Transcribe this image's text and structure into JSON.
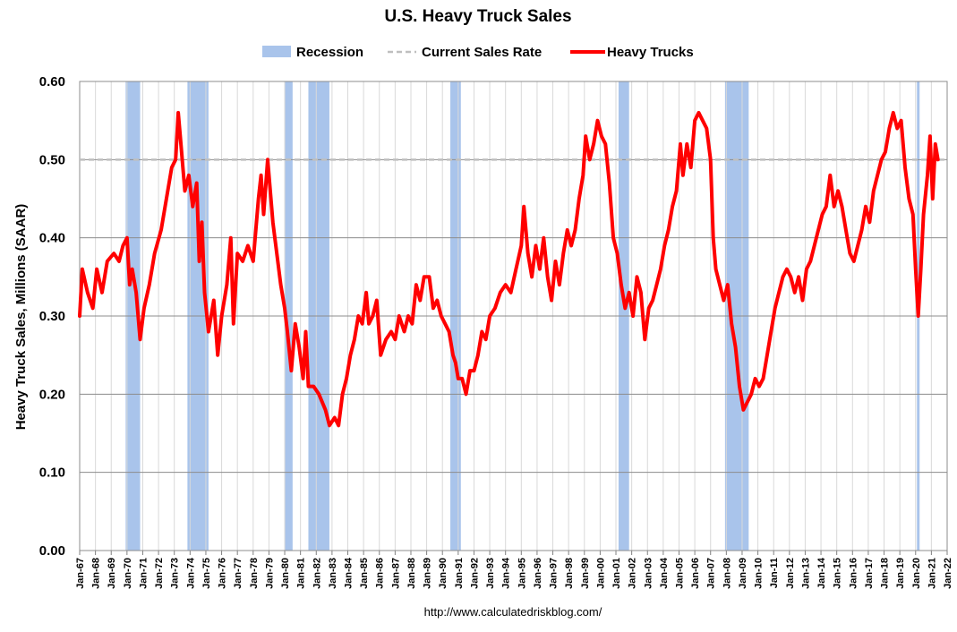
{
  "chart_data": {
    "type": "line",
    "title": "U.S. Heavy Truck Sales",
    "ylabel": "Heavy Truck Sales, Millions (SAAR)",
    "xlabel": "",
    "source": "http://www.calculatedriskblog.com/",
    "ylim": [
      0,
      0.6
    ],
    "yticks": [
      "0.00",
      "0.10",
      "0.20",
      "0.30",
      "0.40",
      "0.50",
      "0.60"
    ],
    "x_range": [
      "1967-01",
      "2022-01"
    ],
    "x_tick_labels": [
      "Jan-67",
      "Jan-68",
      "Jan-69",
      "Jan-70",
      "Jan-71",
      "Jan-72",
      "Jan-73",
      "Jan-74",
      "Jan-75",
      "Jan-76",
      "Jan-77",
      "Jan-78",
      "Jan-79",
      "Jan-80",
      "Jan-81",
      "Jan-82",
      "Jan-83",
      "Jan-84",
      "Jan-85",
      "Jan-86",
      "Jan-87",
      "Jan-88",
      "Jan-89",
      "Jan-90",
      "Jan-91",
      "Jan-92",
      "Jan-93",
      "Jan-94",
      "Jan-95",
      "Jan-96",
      "Jan-97",
      "Jan-98",
      "Jan-99",
      "Jan-00",
      "Jan-01",
      "Jan-02",
      "Jan-03",
      "Jan-04",
      "Jan-05",
      "Jan-06",
      "Jan-07",
      "Jan-08",
      "Jan-09",
      "Jan-10",
      "Jan-11",
      "Jan-12",
      "Jan-13",
      "Jan-14",
      "Jan-15",
      "Jan-16",
      "Jan-17",
      "Jan-18",
      "Jan-19",
      "Jan-20",
      "Jan-21",
      "Jan-22"
    ],
    "grid": true,
    "legend": {
      "placement": "top",
      "entries": [
        {
          "label": "Recession",
          "style": "band",
          "color": "#a9c4eb"
        },
        {
          "label": "Current Sales Rate",
          "style": "dashed",
          "color": "#bfbfbf"
        },
        {
          "label": "Heavy Trucks",
          "style": "line",
          "color": "#ff0000"
        }
      ]
    },
    "recessions": [
      [
        "1969-12",
        "1970-11"
      ],
      [
        "1973-11",
        "1975-03"
      ],
      [
        "1980-01",
        "1980-07"
      ],
      [
        "1981-07",
        "1982-11"
      ],
      [
        "1990-07",
        "1991-03"
      ],
      [
        "2001-03",
        "2001-11"
      ],
      [
        "2007-12",
        "2009-06"
      ],
      [
        "2020-02",
        "2020-04"
      ]
    ],
    "current_rate": 0.5,
    "series": [
      {
        "name": "Heavy Trucks",
        "color": "#ff0000",
        "points": [
          [
            "1967-01",
            0.3
          ],
          [
            "1967-03",
            0.36
          ],
          [
            "1967-07",
            0.33
          ],
          [
            "1967-11",
            0.31
          ],
          [
            "1968-02",
            0.36
          ],
          [
            "1968-06",
            0.33
          ],
          [
            "1968-10",
            0.37
          ],
          [
            "1969-03",
            0.38
          ],
          [
            "1969-07",
            0.37
          ],
          [
            "1969-10",
            0.39
          ],
          [
            "1970-01",
            0.4
          ],
          [
            "1970-03",
            0.34
          ],
          [
            "1970-05",
            0.36
          ],
          [
            "1970-08",
            0.33
          ],
          [
            "1970-11",
            0.27
          ],
          [
            "1971-02",
            0.31
          ],
          [
            "1971-06",
            0.34
          ],
          [
            "1971-10",
            0.38
          ],
          [
            "1972-03",
            0.41
          ],
          [
            "1972-07",
            0.45
          ],
          [
            "1972-11",
            0.49
          ],
          [
            "1973-02",
            0.5
          ],
          [
            "1973-04",
            0.56
          ],
          [
            "1973-06",
            0.52
          ],
          [
            "1973-09",
            0.46
          ],
          [
            "1973-12",
            0.48
          ],
          [
            "1974-03",
            0.44
          ],
          [
            "1974-06",
            0.47
          ],
          [
            "1974-08",
            0.37
          ],
          [
            "1974-10",
            0.42
          ],
          [
            "1974-12",
            0.33
          ],
          [
            "1975-03",
            0.28
          ],
          [
            "1975-07",
            0.32
          ],
          [
            "1975-10",
            0.25
          ],
          [
            "1976-01",
            0.3
          ],
          [
            "1976-05",
            0.34
          ],
          [
            "1976-08",
            0.4
          ],
          [
            "1976-10",
            0.29
          ],
          [
            "1977-01",
            0.38
          ],
          [
            "1977-05",
            0.37
          ],
          [
            "1977-09",
            0.39
          ],
          [
            "1978-01",
            0.37
          ],
          [
            "1978-05",
            0.45
          ],
          [
            "1978-07",
            0.48
          ],
          [
            "1978-09",
            0.43
          ],
          [
            "1978-12",
            0.5
          ],
          [
            "1979-04",
            0.42
          ],
          [
            "1979-07",
            0.38
          ],
          [
            "1979-10",
            0.34
          ],
          [
            "1980-01",
            0.31
          ],
          [
            "1980-03",
            0.28
          ],
          [
            "1980-06",
            0.23
          ],
          [
            "1980-09",
            0.29
          ],
          [
            "1980-12",
            0.26
          ],
          [
            "1981-03",
            0.22
          ],
          [
            "1981-05",
            0.28
          ],
          [
            "1981-07",
            0.21
          ],
          [
            "1981-11",
            0.21
          ],
          [
            "1982-03",
            0.2
          ],
          [
            "1982-08",
            0.18
          ],
          [
            "1982-11",
            0.16
          ],
          [
            "1983-03",
            0.17
          ],
          [
            "1983-06",
            0.16
          ],
          [
            "1983-09",
            0.2
          ],
          [
            "1983-12",
            0.22
          ],
          [
            "1984-03",
            0.25
          ],
          [
            "1984-06",
            0.27
          ],
          [
            "1984-09",
            0.3
          ],
          [
            "1984-12",
            0.29
          ],
          [
            "1985-03",
            0.33
          ],
          [
            "1985-05",
            0.29
          ],
          [
            "1985-08",
            0.3
          ],
          [
            "1985-11",
            0.32
          ],
          [
            "1986-02",
            0.25
          ],
          [
            "1986-06",
            0.27
          ],
          [
            "1986-10",
            0.28
          ],
          [
            "1987-01",
            0.27
          ],
          [
            "1987-04",
            0.3
          ],
          [
            "1987-08",
            0.28
          ],
          [
            "1987-11",
            0.3
          ],
          [
            "1988-02",
            0.29
          ],
          [
            "1988-05",
            0.34
          ],
          [
            "1988-08",
            0.32
          ],
          [
            "1988-11",
            0.35
          ],
          [
            "1989-03",
            0.35
          ],
          [
            "1989-06",
            0.31
          ],
          [
            "1989-09",
            0.32
          ],
          [
            "1989-12",
            0.3
          ],
          [
            "1990-03",
            0.29
          ],
          [
            "1990-06",
            0.28
          ],
          [
            "1990-09",
            0.25
          ],
          [
            "1990-11",
            0.24
          ],
          [
            "1991-01",
            0.22
          ],
          [
            "1991-04",
            0.22
          ],
          [
            "1991-07",
            0.2
          ],
          [
            "1991-10",
            0.23
          ],
          [
            "1992-01",
            0.23
          ],
          [
            "1992-04",
            0.25
          ],
          [
            "1992-07",
            0.28
          ],
          [
            "1992-10",
            0.27
          ],
          [
            "1993-01",
            0.3
          ],
          [
            "1993-05",
            0.31
          ],
          [
            "1993-09",
            0.33
          ],
          [
            "1994-01",
            0.34
          ],
          [
            "1994-05",
            0.33
          ],
          [
            "1994-09",
            0.36
          ],
          [
            "1995-01",
            0.39
          ],
          [
            "1995-03",
            0.44
          ],
          [
            "1995-06",
            0.38
          ],
          [
            "1995-09",
            0.35
          ],
          [
            "1995-12",
            0.39
          ],
          [
            "1996-03",
            0.36
          ],
          [
            "1996-06",
            0.4
          ],
          [
            "1996-09",
            0.35
          ],
          [
            "1996-12",
            0.32
          ],
          [
            "1997-03",
            0.37
          ],
          [
            "1997-06",
            0.34
          ],
          [
            "1997-09",
            0.38
          ],
          [
            "1997-12",
            0.41
          ],
          [
            "1998-03",
            0.39
          ],
          [
            "1998-06",
            0.41
          ],
          [
            "1998-09",
            0.45
          ],
          [
            "1998-12",
            0.48
          ],
          [
            "1999-02",
            0.53
          ],
          [
            "1999-05",
            0.5
          ],
          [
            "1999-08",
            0.52
          ],
          [
            "1999-11",
            0.55
          ],
          [
            "2000-02",
            0.53
          ],
          [
            "2000-05",
            0.52
          ],
          [
            "2000-08",
            0.47
          ],
          [
            "2000-11",
            0.4
          ],
          [
            "2001-02",
            0.38
          ],
          [
            "2001-05",
            0.34
          ],
          [
            "2001-08",
            0.31
          ],
          [
            "2001-11",
            0.33
          ],
          [
            "2002-02",
            0.3
          ],
          [
            "2002-05",
            0.35
          ],
          [
            "2002-08",
            0.33
          ],
          [
            "2002-11",
            0.27
          ],
          [
            "2003-02",
            0.31
          ],
          [
            "2003-05",
            0.32
          ],
          [
            "2003-08",
            0.34
          ],
          [
            "2003-11",
            0.36
          ],
          [
            "2004-02",
            0.39
          ],
          [
            "2004-05",
            0.41
          ],
          [
            "2004-08",
            0.44
          ],
          [
            "2004-11",
            0.46
          ],
          [
            "2005-02",
            0.52
          ],
          [
            "2005-04",
            0.48
          ],
          [
            "2005-07",
            0.52
          ],
          [
            "2005-10",
            0.49
          ],
          [
            "2006-01",
            0.55
          ],
          [
            "2006-04",
            0.56
          ],
          [
            "2006-07",
            0.55
          ],
          [
            "2006-10",
            0.54
          ],
          [
            "2007-01",
            0.5
          ],
          [
            "2007-03",
            0.4
          ],
          [
            "2007-05",
            0.36
          ],
          [
            "2007-08",
            0.34
          ],
          [
            "2007-11",
            0.32
          ],
          [
            "2008-02",
            0.34
          ],
          [
            "2008-05",
            0.29
          ],
          [
            "2008-08",
            0.26
          ],
          [
            "2008-11",
            0.21
          ],
          [
            "2009-02",
            0.18
          ],
          [
            "2009-05",
            0.19
          ],
          [
            "2009-08",
            0.2
          ],
          [
            "2009-11",
            0.22
          ],
          [
            "2010-02",
            0.21
          ],
          [
            "2010-05",
            0.22
          ],
          [
            "2010-08",
            0.25
          ],
          [
            "2010-11",
            0.28
          ],
          [
            "2011-02",
            0.31
          ],
          [
            "2011-05",
            0.33
          ],
          [
            "2011-08",
            0.35
          ],
          [
            "2011-11",
            0.36
          ],
          [
            "2012-02",
            0.35
          ],
          [
            "2012-05",
            0.33
          ],
          [
            "2012-08",
            0.35
          ],
          [
            "2012-11",
            0.32
          ],
          [
            "2013-02",
            0.36
          ],
          [
            "2013-05",
            0.37
          ],
          [
            "2013-08",
            0.39
          ],
          [
            "2013-11",
            0.41
          ],
          [
            "2014-02",
            0.43
          ],
          [
            "2014-05",
            0.44
          ],
          [
            "2014-08",
            0.48
          ],
          [
            "2014-11",
            0.44
          ],
          [
            "2015-02",
            0.46
          ],
          [
            "2015-05",
            0.44
          ],
          [
            "2015-08",
            0.41
          ],
          [
            "2015-11",
            0.38
          ],
          [
            "2016-02",
            0.37
          ],
          [
            "2016-05",
            0.39
          ],
          [
            "2016-08",
            0.41
          ],
          [
            "2016-11",
            0.44
          ],
          [
            "2017-02",
            0.42
          ],
          [
            "2017-05",
            0.46
          ],
          [
            "2017-08",
            0.48
          ],
          [
            "2017-11",
            0.5
          ],
          [
            "2018-02",
            0.51
          ],
          [
            "2018-05",
            0.54
          ],
          [
            "2018-08",
            0.56
          ],
          [
            "2018-11",
            0.54
          ],
          [
            "2019-02",
            0.55
          ],
          [
            "2019-05",
            0.49
          ],
          [
            "2019-08",
            0.45
          ],
          [
            "2019-11",
            0.43
          ],
          [
            "2020-01",
            0.36
          ],
          [
            "2020-03",
            0.3
          ],
          [
            "2020-05",
            0.36
          ],
          [
            "2020-07",
            0.43
          ],
          [
            "2020-10",
            0.48
          ],
          [
            "2020-12",
            0.53
          ],
          [
            "2021-02",
            0.45
          ],
          [
            "2021-04",
            0.52
          ],
          [
            "2021-06",
            0.5
          ]
        ]
      }
    ]
  }
}
